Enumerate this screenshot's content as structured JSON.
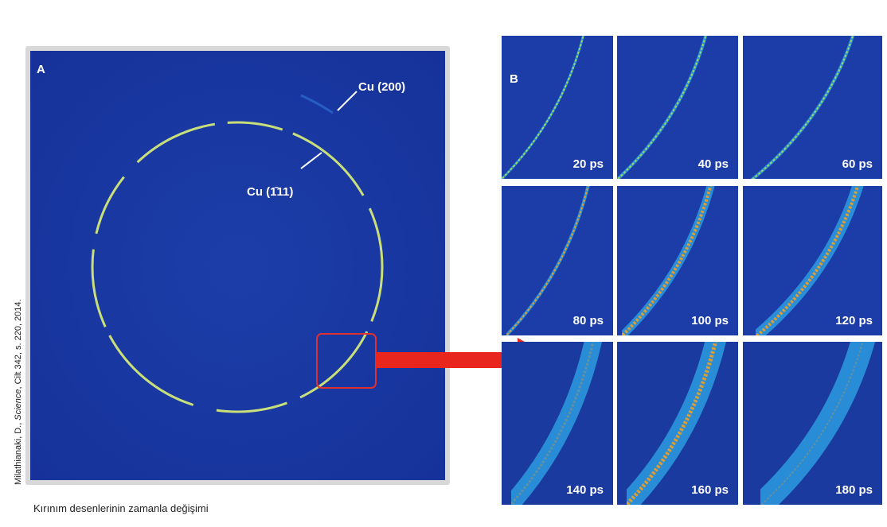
{
  "panel_a": {
    "label": "A",
    "annotations": [
      "Cu (200)",
      "Cu (1̄11)"
    ]
  },
  "panel_b": {
    "label": "B",
    "frames": [
      "20 ps",
      "40 ps",
      "60 ps",
      "80 ps",
      "100 ps",
      "120 ps",
      "140 ps",
      "160 ps",
      "180 ps"
    ]
  },
  "credit": {
    "author": "Milathianaki, D., ",
    "journal": "Science",
    "rest": ", Cilt 342, s. 220, 2014."
  },
  "caption": "Kırınım desenlerinin zamanla değişimi"
}
